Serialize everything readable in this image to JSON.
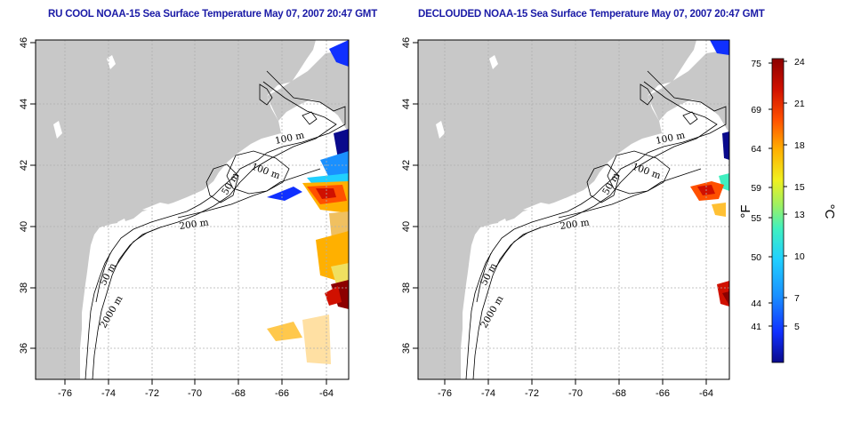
{
  "maps": [
    {
      "title": "RU COOL NOAA-15 Sea Surface Temperature May 07, 2007 20:47 GMT",
      "lat_ticks": [
        "46",
        "44",
        "42",
        "40",
        "38",
        "36"
      ],
      "lon_ticks": [
        "-76",
        "-74",
        "-72",
        "-70",
        "-68",
        "-66",
        "-64"
      ],
      "contour_labels": [
        "100 m",
        "100 m",
        "50 m",
        "200 m",
        "50 m",
        "2000 m"
      ]
    },
    {
      "title": "DECLOUDED NOAA-15 Sea Surface Temperature May 07, 2007 20:47 GMT",
      "lat_ticks": [
        "46",
        "44",
        "42",
        "40",
        "38",
        "36"
      ],
      "lon_ticks": [
        "-76",
        "-74",
        "-72",
        "-70",
        "-68",
        "-66",
        "-64"
      ],
      "contour_labels": [
        "100 m",
        "100 m",
        "50 m",
        "200 m",
        "50 m",
        "2000 m"
      ]
    }
  ],
  "colorbar": {
    "fahrenheit_ticks": [
      "75",
      "69",
      "64",
      "59",
      "55",
      "50",
      "44",
      "41"
    ],
    "celsius_ticks": [
      "24",
      "21",
      "18",
      "15",
      "13",
      "10",
      "7",
      "5"
    ],
    "fahrenheit_unit": "°F",
    "celsius_unit": "°C",
    "colors": [
      "#0a0a8c",
      "#1030ff",
      "#1a90ff",
      "#20d0ff",
      "#40f0c0",
      "#a0f060",
      "#f0f020",
      "#ffb000",
      "#ff5000",
      "#d01000",
      "#8c0000"
    ]
  },
  "colors": {
    "land": "#c8c8c8",
    "contour": "#000000",
    "grid": "#b0b0b0",
    "title": "#1a1aa6"
  }
}
